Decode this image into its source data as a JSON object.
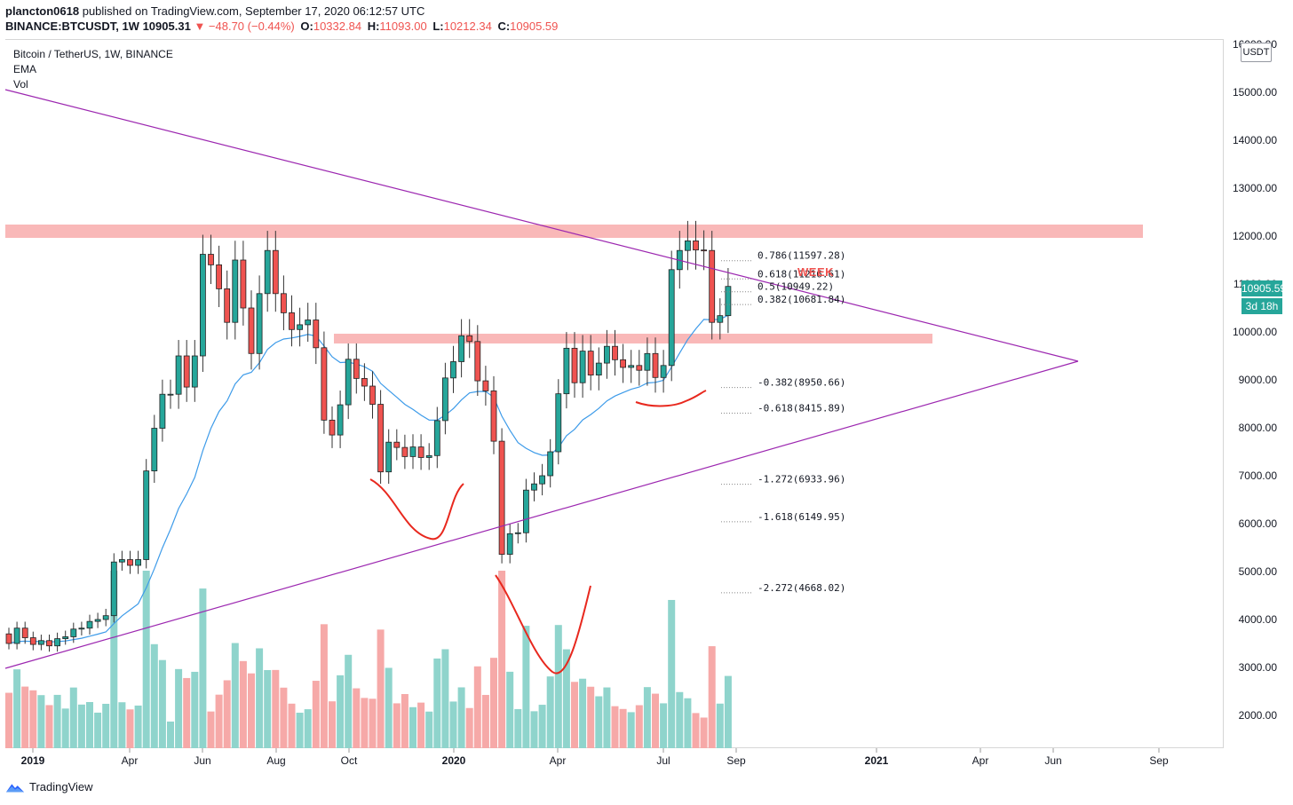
{
  "header": {
    "publisher": "plancton0618",
    "published_text": "published on TradingView.com, September 17, 2020 06:12:57 UTC",
    "symbol": "BINANCE:BTCUSDT, 1W",
    "last": "10905.31",
    "change": "▼ −48.70 (−0.44%)",
    "o_label": "O:",
    "o": "10332.84",
    "h_label": "H:",
    "h": "11093.00",
    "l_label": "L:",
    "l": "10212.34",
    "c_label": "C:",
    "c": "10905.59"
  },
  "legend": {
    "title": "Bitcoin / TetherUS, 1W, BINANCE",
    "ema": "EMA",
    "vol": "Vol"
  },
  "scale": {
    "currency": "USDT",
    "price_tag": "10905.59",
    "timer_tag": "3d 18h"
  },
  "annotation": {
    "week": "WEEK"
  },
  "footer": {
    "brand": "TradingView"
  },
  "colors": {
    "up": "#26a69a",
    "down": "#ef5350",
    "vol_up": "#8fd4cc",
    "vol_down": "#f6a9a8",
    "ema": "#3d9be9",
    "trendline": "#9c27b0",
    "zone": "#f9b4b4",
    "annotation": "#e8281e"
  },
  "chart_data": {
    "type": "candlestick",
    "y_ticks": [
      "16000.00",
      "15000.00",
      "14000.00",
      "13000.00",
      "12000.00",
      "11000.00",
      "10000.00",
      "9000.00",
      "8000.00",
      "7000.00",
      "6000.00",
      "5000.00",
      "4000.00",
      "3000.00",
      "2000.00"
    ],
    "x_ticks": [
      {
        "label": "2019",
        "bold": true
      },
      {
        "label": "Apr",
        "bold": false
      },
      {
        "label": "Jun",
        "bold": false
      },
      {
        "label": "Aug",
        "bold": false
      },
      {
        "label": "Oct",
        "bold": false
      },
      {
        "label": "2020",
        "bold": true
      },
      {
        "label": "Apr",
        "bold": false
      },
      {
        "label": "Jul",
        "bold": false
      },
      {
        "label": "Sep",
        "bold": false
      },
      {
        "label": "2021",
        "bold": true
      },
      {
        "label": "Apr",
        "bold": false
      },
      {
        "label": "Jun",
        "bold": false
      },
      {
        "label": "Sep",
        "bold": false
      }
    ],
    "candles_close": [
      3500,
      3820,
      3620,
      3480,
      3560,
      3450,
      3600,
      3640,
      3800,
      3820,
      3960,
      4000,
      4080,
      5200,
      5250,
      5130,
      5250,
      7100,
      7990,
      8700,
      8700,
      9500,
      8850,
      9500,
      11620,
      11400,
      10900,
      10200,
      11500,
      10500,
      9550,
      10800,
      11700,
      10800,
      10400,
      10050,
      10150,
      10250,
      9670,
      8160,
      7850,
      8480,
      9430,
      9030,
      8870,
      8490,
      7080,
      7700,
      7590,
      7400,
      7600,
      7380,
      7420,
      8150,
      9040,
      9380,
      9920,
      9800,
      8980,
      8770,
      7720,
      5360,
      5790,
      5810,
      6700,
      6830,
      7000,
      7500,
      8710,
      9660,
      8940,
      9600,
      9100,
      9350,
      9700,
      9420,
      9260,
      9300,
      9200,
      9550,
      9050,
      9300,
      11300,
      11700,
      11900,
      11710,
      11700,
      10200,
      10340,
      10950
    ],
    "candles_open": [
      3700,
      3500,
      3820,
      3620,
      3480,
      3560,
      3450,
      3600,
      3640,
      3800,
      3820,
      3960,
      4000,
      4080,
      5200,
      5250,
      5130,
      5250,
      7100,
      7990,
      8700,
      8700,
      9500,
      8850,
      9500,
      11620,
      11400,
      10900,
      10200,
      11500,
      10500,
      9550,
      10800,
      11700,
      10800,
      10400,
      10050,
      10150,
      10250,
      9670,
      8160,
      7850,
      8480,
      9430,
      9030,
      8870,
      8490,
      7080,
      7700,
      7590,
      7400,
      7600,
      7380,
      7420,
      8150,
      9040,
      9380,
      9920,
      9800,
      8980,
      8770,
      7720,
      5360,
      5790,
      5810,
      6700,
      6830,
      7000,
      7500,
      8710,
      9660,
      8940,
      9600,
      9100,
      9350,
      9700,
      9420,
      9260,
      9300,
      9200,
      9550,
      9050,
      9300,
      11300,
      11700,
      11900,
      11710,
      11700,
      10200,
      10340
    ],
    "fib_levels": [
      {
        "label": "0.786(11597.28)",
        "value": 11597.28
      },
      {
        "label": "0.618(11216.61)",
        "value": 11216.61
      },
      {
        "label": "0.5(10949.22)",
        "value": 10949.22
      },
      {
        "label": "0.382(10681.84)",
        "value": 10681.84
      },
      {
        "label": "-0.382(8950.66)",
        "value": 8950.66
      },
      {
        "label": "-0.618(8415.89)",
        "value": 8415.89
      },
      {
        "label": "-1.272(6933.96)",
        "value": 6933.96
      },
      {
        "label": "-1.618(6149.95)",
        "value": 6149.95
      },
      {
        "label": "-2.272(4668.02)",
        "value": 4668.02
      }
    ],
    "resistance_zone": [
      11950,
      12250
    ],
    "support_zone": [
      9750,
      9950
    ],
    "y_range": [
      1300,
      16300
    ]
  }
}
